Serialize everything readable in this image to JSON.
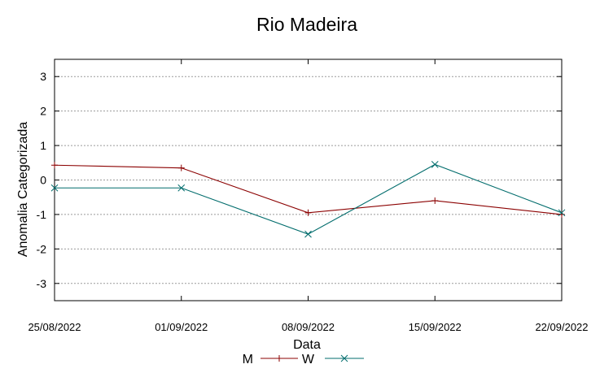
{
  "chart_data": {
    "type": "line",
    "title": "Rio Madeira",
    "xlabel": "Data",
    "ylabel": "Anomalia Categorizada",
    "categories": [
      "25/08/2022",
      "01/09/2022",
      "08/09/2022",
      "15/09/2022",
      "22/09/2022"
    ],
    "ylim": [
      -3.5,
      3.5
    ],
    "yticks": [
      3,
      2,
      1,
      0,
      -1,
      -2,
      -3
    ],
    "grid": true,
    "legend_position": "bottom",
    "series": [
      {
        "name": "M",
        "values": [
          0.43,
          0.35,
          -0.95,
          -0.6,
          -1.0
        ],
        "color": "#8b0000",
        "marker": "plus"
      },
      {
        "name": "W",
        "values": [
          -0.23,
          -0.23,
          -1.57,
          0.45,
          -0.95
        ],
        "color": "#006c6c",
        "marker": "cross"
      }
    ]
  }
}
